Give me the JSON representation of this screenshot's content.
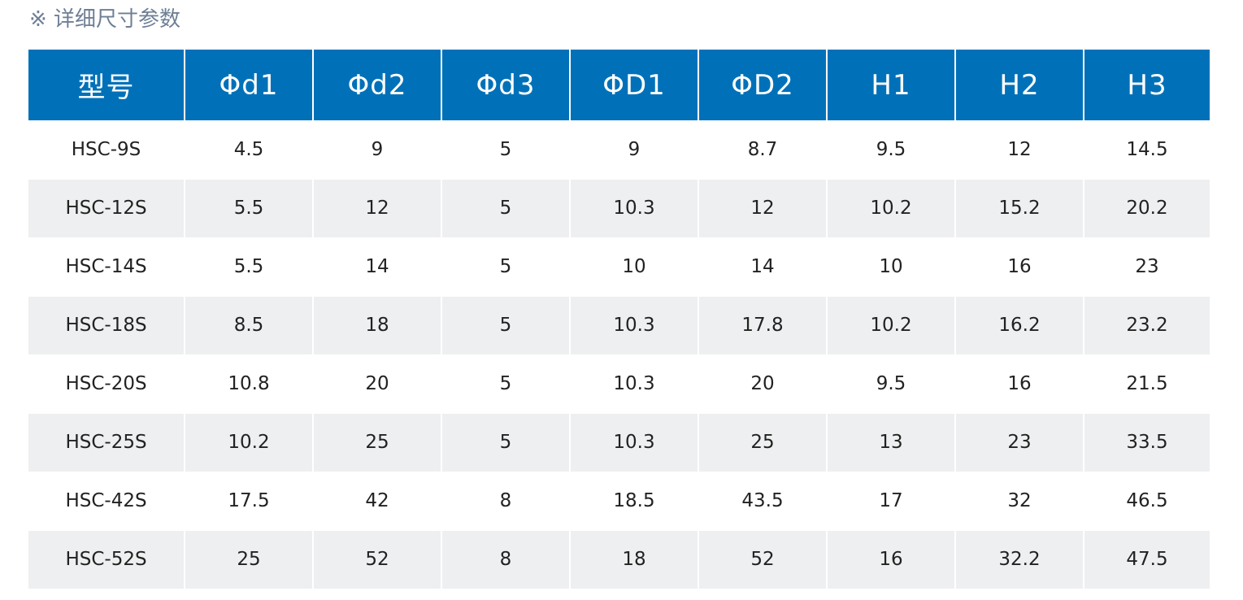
{
  "title": "※ 详细尺寸参数",
  "table": {
    "headers": [
      "型号",
      "Φd1",
      "Φd2",
      "Φd3",
      "ΦD1",
      "ΦD2",
      "H1",
      "H2",
      "H3"
    ],
    "rows": [
      [
        "HSC-9S",
        "4.5",
        "9",
        "5",
        "9",
        "8.7",
        "9.5",
        "12",
        "14.5"
      ],
      [
        "HSC-12S",
        "5.5",
        "12",
        "5",
        "10.3",
        "12",
        "10.2",
        "15.2",
        "20.2"
      ],
      [
        "HSC-14S",
        "5.5",
        "14",
        "5",
        "10",
        "14",
        "10",
        "16",
        "23"
      ],
      [
        "HSC-18S",
        "8.5",
        "18",
        "5",
        "10.3",
        "17.8",
        "10.2",
        "16.2",
        "23.2"
      ],
      [
        "HSC-20S",
        "10.8",
        "20",
        "5",
        "10.3",
        "20",
        "9.5",
        "16",
        "21.5"
      ],
      [
        "HSC-25S",
        "10.2",
        "25",
        "5",
        "10.3",
        "25",
        "13",
        "23",
        "33.5"
      ],
      [
        "HSC-42S",
        "17.5",
        "42",
        "8",
        "18.5",
        "43.5",
        "17",
        "32",
        "46.5"
      ],
      [
        "HSC-52S",
        "25",
        "52",
        "8",
        "18",
        "52",
        "16",
        "32.2",
        "47.5"
      ]
    ]
  },
  "colors": {
    "header_bg": "#0071b9",
    "header_text": "#ffffff",
    "stripe_bg": "#eeeff0",
    "title_text": "#6e7f95"
  }
}
